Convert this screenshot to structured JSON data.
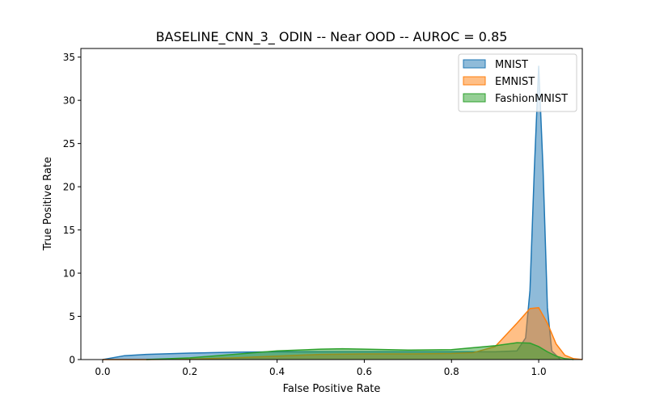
{
  "chart_data": {
    "type": "area",
    "title": "BASELINE_CNN_3_ ODIN -- Near OOD -- AUROC = 0.85",
    "xlabel": "False Positive Rate",
    "ylabel": "True Positive Rate",
    "xlim": [
      -0.05,
      1.1
    ],
    "ylim": [
      0,
      36
    ],
    "xticks": [
      0.0,
      0.2,
      0.4,
      0.6,
      0.8,
      1.0
    ],
    "xtick_labels": [
      "0.0",
      "0.2",
      "0.4",
      "0.6",
      "0.8",
      "1.0"
    ],
    "yticks": [
      0,
      5,
      10,
      15,
      20,
      25,
      30,
      35
    ],
    "ytick_labels": [
      "0",
      "5",
      "10",
      "15",
      "20",
      "25",
      "30",
      "35"
    ],
    "grid": false,
    "legend_position": "top-right",
    "series": [
      {
        "name": "MNIST",
        "color": "#1f77b4",
        "x": [
          0.0,
          0.05,
          0.1,
          0.2,
          0.3,
          0.4,
          0.5,
          0.6,
          0.7,
          0.8,
          0.9,
          0.95,
          0.97,
          0.98,
          0.99,
          1.0,
          1.01,
          1.02,
          1.03,
          1.05
        ],
        "y": [
          0.0,
          0.45,
          0.6,
          0.75,
          0.85,
          0.9,
          0.9,
          0.9,
          0.9,
          0.9,
          0.9,
          1.0,
          2.5,
          8.0,
          22.0,
          34.0,
          22.0,
          6.0,
          1.0,
          0.0
        ]
      },
      {
        "name": "EMNIST",
        "color": "#ff7f0e",
        "x": [
          0.0,
          0.1,
          0.2,
          0.3,
          0.4,
          0.5,
          0.6,
          0.7,
          0.8,
          0.85,
          0.9,
          0.95,
          0.98,
          1.0,
          1.02,
          1.04,
          1.06,
          1.08,
          1.1
        ],
        "y": [
          0.0,
          0.0,
          0.05,
          0.2,
          0.4,
          0.6,
          0.65,
          0.65,
          0.7,
          0.8,
          1.5,
          4.2,
          5.9,
          6.0,
          4.2,
          1.8,
          0.5,
          0.1,
          0.0
        ]
      },
      {
        "name": "FashionMNIST",
        "color": "#2ca02c",
        "x": [
          0.1,
          0.2,
          0.3,
          0.4,
          0.5,
          0.55,
          0.6,
          0.7,
          0.8,
          0.9,
          0.95,
          0.98,
          1.0,
          1.02,
          1.04,
          1.06,
          1.08
        ],
        "y": [
          0.0,
          0.2,
          0.6,
          1.0,
          1.2,
          1.25,
          1.2,
          1.1,
          1.15,
          1.6,
          1.95,
          1.9,
          1.5,
          0.9,
          0.4,
          0.1,
          0.0
        ]
      }
    ]
  }
}
